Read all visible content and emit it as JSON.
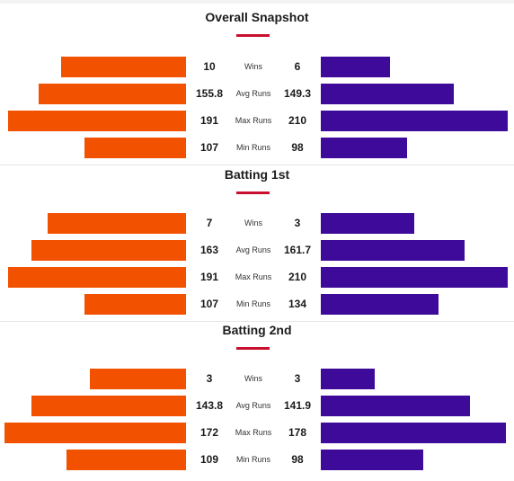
{
  "colors": {
    "team_a": "#f25100",
    "team_b": "#3d0a99",
    "accent": "#c8102e"
  },
  "sections": [
    {
      "title": "Overall Snapshot",
      "rows": [
        {
          "label": "Wins",
          "left": "10",
          "right": "6",
          "left_fraction": 0.69,
          "right_fraction": 0.37
        },
        {
          "label": "Avg Runs",
          "left": "155.8",
          "right": "149.3",
          "left_fraction": 0.81,
          "right_fraction": 0.71
        },
        {
          "label": "Max Runs",
          "left": "191",
          "right": "210",
          "left_fraction": 0.98,
          "right_fraction": 1.0
        },
        {
          "label": "Min Runs",
          "left": "107",
          "right": "98",
          "left_fraction": 0.56,
          "right_fraction": 0.46
        }
      ]
    },
    {
      "title": "Batting 1st",
      "rows": [
        {
          "label": "Wins",
          "left": "7",
          "right": "3",
          "left_fraction": 0.76,
          "right_fraction": 0.5
        },
        {
          "label": "Avg Runs",
          "left": "163",
          "right": "161.7",
          "left_fraction": 0.85,
          "right_fraction": 0.77
        },
        {
          "label": "Max Runs",
          "left": "191",
          "right": "210",
          "left_fraction": 0.98,
          "right_fraction": 1.0
        },
        {
          "label": "Min Runs",
          "left": "107",
          "right": "134",
          "left_fraction": 0.56,
          "right_fraction": 0.63
        }
      ]
    },
    {
      "title": "Batting 2nd",
      "rows": [
        {
          "label": "Wins",
          "left": "3",
          "right": "3",
          "left_fraction": 0.53,
          "right_fraction": 0.29
        },
        {
          "label": "Avg Runs",
          "left": "143.8",
          "right": "141.9",
          "left_fraction": 0.85,
          "right_fraction": 0.8
        },
        {
          "label": "Max Runs",
          "left": "172",
          "right": "178",
          "left_fraction": 1.0,
          "right_fraction": 0.99
        },
        {
          "label": "Min Runs",
          "left": "109",
          "right": "98",
          "left_fraction": 0.66,
          "right_fraction": 0.55
        }
      ]
    }
  ]
}
